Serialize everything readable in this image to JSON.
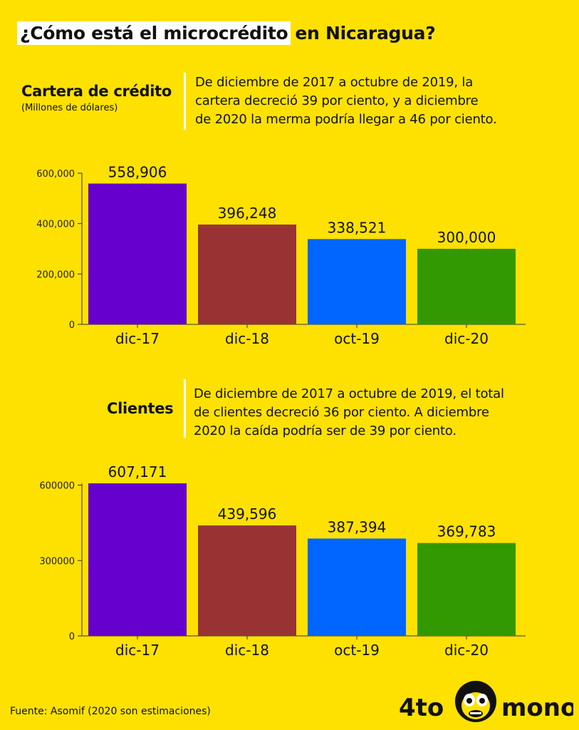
{
  "title": {
    "highlight": "¿Cómo está el microcrédito",
    "rest": "en Nicaragua?"
  },
  "section1": {
    "title": "Cartera de crédito",
    "subtitle": "(Millones de dólares)",
    "description": [
      "De diciembre de 2017 a octubre de 2019, la",
      "cartera decreció 39 por ciento, y a diciembre",
      "de 2020 la merma podría llegar a 46 por ciento."
    ]
  },
  "section2": {
    "title": "Clientes",
    "description": [
      "De diciembre de 2017 a octubre de 2019, el total",
      "de clientes decreció 36 por ciento. A diciembre",
      "2020 la caída podría ser de 39 por ciento."
    ]
  },
  "chart_data": [
    {
      "type": "bar",
      "title": "Cartera de crédito",
      "categories": [
        "dic-17",
        "dic-18",
        "oct-19",
        "dic-20"
      ],
      "values": [
        558906,
        396248,
        338521,
        300000
      ],
      "value_labels": [
        "558,906",
        "396,248",
        "338,521",
        "300,000"
      ],
      "yticks": [
        0,
        200000,
        400000,
        600000
      ],
      "ytick_labels": [
        "0",
        "200,000",
        "400,000",
        "600,000"
      ],
      "ylim": [
        0,
        600000
      ],
      "colors": [
        "#6600CC",
        "#993333",
        "#0066FF",
        "#339900"
      ],
      "grid": false
    },
    {
      "type": "bar",
      "title": "Clientes",
      "categories": [
        "dic-17",
        "dic-18",
        "oct-19",
        "dic-20"
      ],
      "values": [
        607171,
        439596,
        387394,
        369783
      ],
      "value_labels": [
        "607,171",
        "439,596",
        "387,394",
        "369,783"
      ],
      "yticks": [
        0,
        300000,
        600000
      ],
      "ytick_labels": [
        "0",
        "300000",
        "600000"
      ],
      "ylim": [
        0,
        607171
      ],
      "colors": [
        "#6600CC",
        "#993333",
        "#0066FF",
        "#339900"
      ],
      "grid": false
    }
  ],
  "source": "Fuente: Asomif (2020 son estimaciones)",
  "logo": {
    "left": "4to",
    "right": "mono",
    "icon": "monkey-face-icon"
  }
}
